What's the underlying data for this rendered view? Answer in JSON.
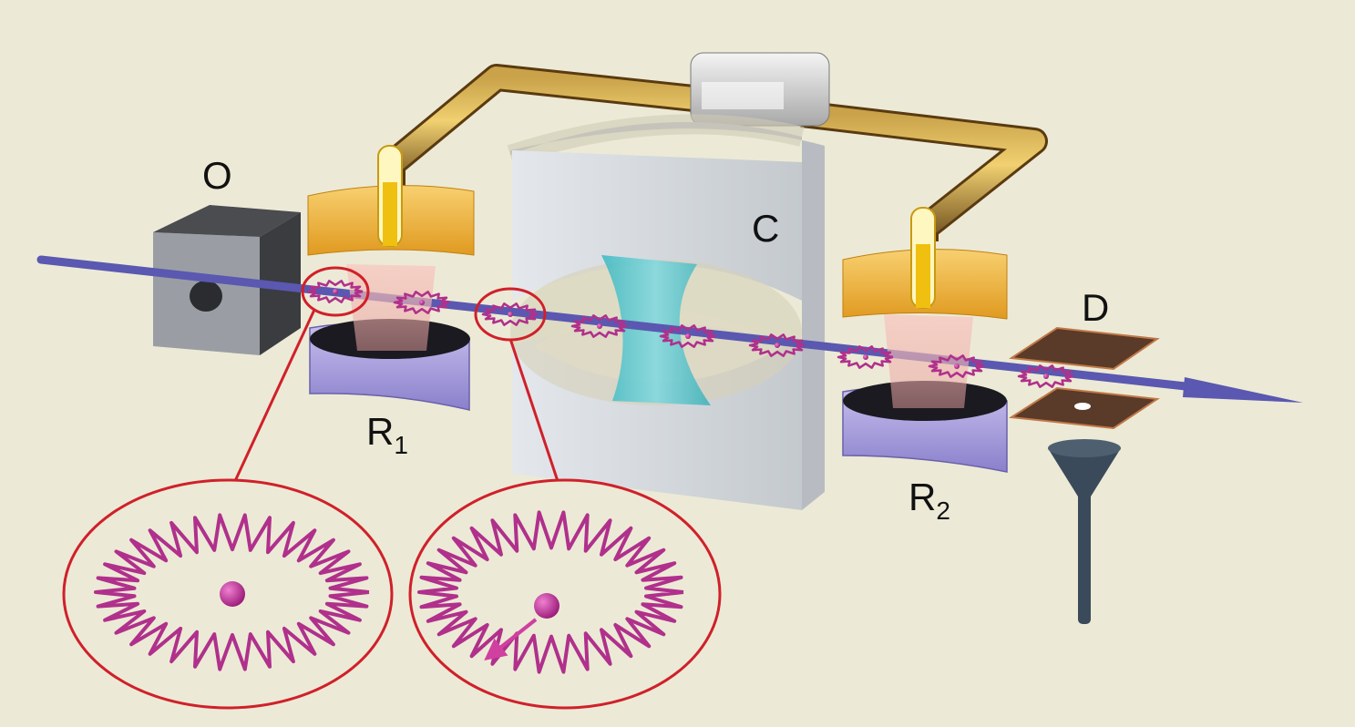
{
  "labels": {
    "oven": "O",
    "cavity": "C",
    "zone1": {
      "main": "R",
      "sub": "1"
    },
    "zone2": {
      "main": "R",
      "sub": "2"
    },
    "detector": "D"
  },
  "colors": {
    "background": "#ecead6",
    "beam": "#5a58b0",
    "atom": "#b0308c",
    "callout": "#d0202a",
    "copper": "#7a5a2a",
    "gold": "#f0b040",
    "mirror": "#60c8d0"
  },
  "icons": [
    "oven-box",
    "microwave-guide",
    "cavity-mirror",
    "field-ionization-detector",
    "rydberg-atom"
  ]
}
